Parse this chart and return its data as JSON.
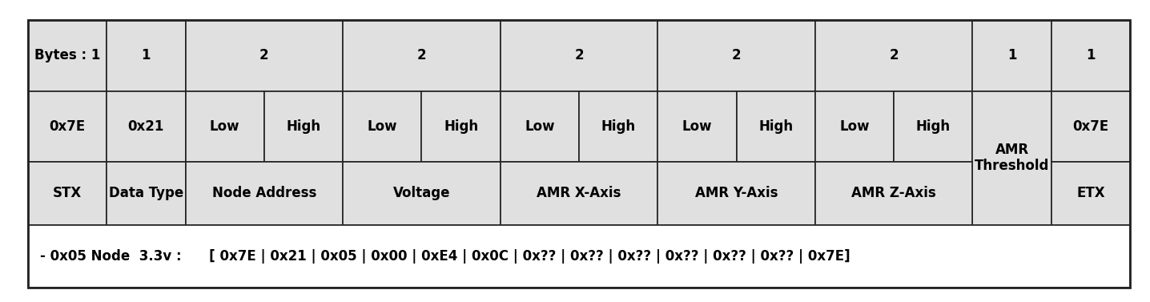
{
  "fig_width": 14.36,
  "fig_height": 3.77,
  "bg_color": "#ffffff",
  "cell_bg": "#e0e0e0",
  "border_color": "#222222",
  "footer_text": "- 0x05 Node  3.3v :      [ 0x7E | 0x21 | 0x05 | 0x00 | 0xE4 | 0x0C | 0x?? | 0x?? | 0x?? | 0x?? | 0x?? | 0x?? | 0x7E]",
  "font_size_main": 12,
  "font_size_footer": 12,
  "units": [
    1,
    1,
    2,
    2,
    2,
    2,
    2,
    1,
    1
  ],
  "row1_texts": [
    "Bytes : 1",
    "1",
    "2",
    "2",
    "2",
    "2",
    "2",
    "1",
    "1"
  ],
  "row2_single": [
    "0x7E",
    "0x21"
  ],
  "row3_labels": [
    "STX",
    "Data Type",
    "Node Address",
    "Voltage",
    "AMR X-Axis",
    "AMR Y-Axis",
    "AMR Z-Axis"
  ],
  "amr_threshold": "AMR\nThreshold",
  "etx_hex": "0x7E",
  "etx_label": "ETX"
}
